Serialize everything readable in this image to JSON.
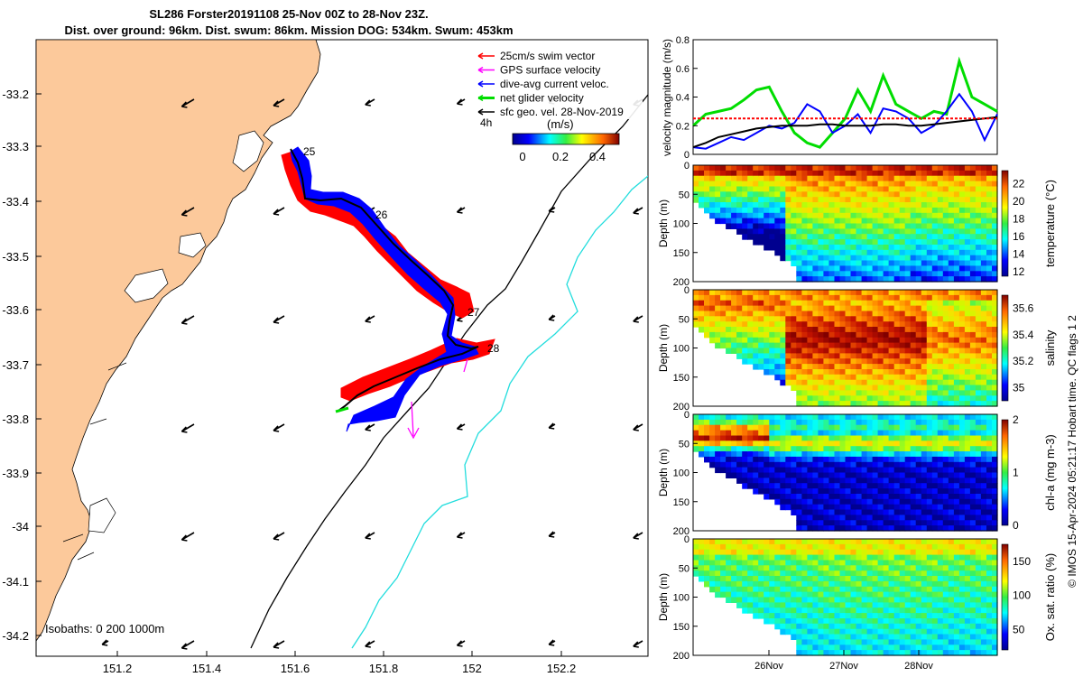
{
  "header": {
    "title_line1": "SL286 Forster20191108 25-Nov 00Z to 28-Nov 23Z.",
    "title_line2": "Dist. over ground: 96km. Dist. swum: 86km. Mission DOG: 534km. Swum: 453km"
  },
  "map": {
    "lat_ticks": [
      "-33.2",
      "-33.3",
      "-33.4",
      "-33.5",
      "-33.6",
      "-33.7",
      "-33.8",
      "-33.9",
      "-34",
      "-34.1",
      "-34.2"
    ],
    "lon_ticks": [
      "151.2",
      "151.4",
      "151.6",
      "151.8",
      "152",
      "152.2"
    ],
    "legend": [
      {
        "label": "25cm/s swim vector",
        "color": "#ff0000"
      },
      {
        "label": "GPS surface velocity",
        "color": "#ff00ff"
      },
      {
        "label": "dive-avg current veloc.",
        "color": "#0000ff"
      },
      {
        "label": "net glider velocity",
        "color": "#00dd00"
      },
      {
        "label": "sfc geo. vel. 28-Nov-2019",
        "color": "#000000"
      }
    ],
    "scale_label": "4h",
    "colorbar_unit": "(m/s)",
    "colorbar_ticks": [
      "0",
      "0.2",
      "0.4"
    ],
    "day_labels": [
      "25",
      "26",
      "27",
      "28"
    ],
    "isobaths_label": "Isobaths: 0   200  1000m",
    "colors": {
      "land": "#fcc99b",
      "isobath_200": "#000000",
      "isobath_1000": "#22dddd"
    }
  },
  "panels": {
    "velocity": {
      "ylabel": "velocity magnitude (m/s)",
      "yticks": [
        "0",
        "0.2",
        "0.4",
        "0.6",
        "0.8"
      ]
    },
    "temperature": {
      "ylabel": "Depth (m)",
      "cb_label": "temperature (°C)",
      "cb_ticks": [
        "12",
        "14",
        "16",
        "18",
        "20",
        "22"
      ]
    },
    "salinity": {
      "ylabel": "Depth (m)",
      "cb_label": "salinity",
      "cb_ticks": [
        "35",
        "35.2",
        "35.4",
        "35.6"
      ]
    },
    "chla": {
      "ylabel": "Depth (m)",
      "cb_label": "chl-a (mg m-3)",
      "cb_ticks": [
        "0",
        "1",
        "2"
      ]
    },
    "oxygen": {
      "ylabel": "Depth (m)",
      "cb_label": "Ox. sat. ratio (%)",
      "cb_ticks": [
        "50",
        "100",
        "150"
      ]
    },
    "depth_ticks": [
      "0",
      "50",
      "100",
      "150",
      "200"
    ],
    "date_ticks": [
      "26Nov",
      "27Nov",
      "28Nov"
    ]
  },
  "side_note": "© IMOS 15-Apr-2024 05:21:17 Hobart time. QC flags 1  2",
  "chart_data": [
    {
      "type": "line",
      "title": "",
      "ylabel": "velocity magnitude (m/s)",
      "xlabel": "",
      "ylim": [
        0,
        0.8
      ],
      "x_range": [
        "25-Nov 00Z",
        "28-Nov 23Z"
      ],
      "series": [
        {
          "color": "#00dd00",
          "values": [
            0.2,
            0.28,
            0.3,
            0.32,
            0.38,
            0.45,
            0.47,
            0.3,
            0.15,
            0.08,
            0.05,
            0.15,
            0.25,
            0.45,
            0.3,
            0.55,
            0.35,
            0.3,
            0.25,
            0.3,
            0.28,
            0.65,
            0.4,
            0.35,
            0.3
          ]
        },
        {
          "color": "#0000ff",
          "values": [
            0.05,
            0.04,
            0.08,
            0.12,
            0.1,
            0.15,
            0.2,
            0.18,
            0.22,
            0.35,
            0.3,
            0.15,
            0.2,
            0.28,
            0.15,
            0.32,
            0.3,
            0.25,
            0.15,
            0.2,
            0.3,
            0.42,
            0.3,
            0.1,
            0.28
          ]
        },
        {
          "color": "#000000",
          "values": [
            0.05,
            0.08,
            0.12,
            0.14,
            0.16,
            0.18,
            0.19,
            0.2,
            0.2,
            0.2,
            0.21,
            0.21,
            0.2,
            0.2,
            0.2,
            0.21,
            0.21,
            0.2,
            0.2,
            0.21,
            0.22,
            0.23,
            0.24,
            0.25,
            0.26
          ]
        },
        {
          "color": "#ff0000",
          "values": [
            0.25,
            0.25,
            0.25,
            0.25,
            0.25,
            0.25,
            0.25,
            0.25,
            0.25,
            0.25,
            0.25,
            0.25,
            0.25,
            0.25,
            0.25,
            0.25,
            0.25,
            0.25,
            0.25,
            0.25,
            0.25,
            0.25,
            0.25,
            0.25,
            0.25
          ]
        }
      ]
    },
    {
      "type": "heatmap",
      "title": "",
      "ylabel": "Depth (m)",
      "colorbar_label": "temperature (°C)",
      "clim": [
        11.5,
        23.5
      ],
      "ylim": [
        200,
        0
      ],
      "x_range": [
        "25-Nov 00Z",
        "28-Nov 23Z"
      ],
      "x_ticks": [
        "26Nov",
        "27Nov",
        "28Nov"
      ]
    },
    {
      "type": "heatmap",
      "title": "",
      "ylabel": "Depth (m)",
      "colorbar_label": "salinity",
      "clim": [
        34.9,
        35.7
      ],
      "ylim": [
        200,
        0
      ],
      "x_range": [
        "25-Nov 00Z",
        "28-Nov 23Z"
      ],
      "x_ticks": [
        "26Nov",
        "27Nov",
        "28Nov"
      ]
    },
    {
      "type": "heatmap",
      "title": "",
      "ylabel": "Depth (m)",
      "colorbar_label": "chl-a (mg m-3)",
      "clim": [
        0,
        2
      ],
      "ylim": [
        200,
        0
      ],
      "x_range": [
        "25-Nov 00Z",
        "28-Nov 23Z"
      ],
      "x_ticks": [
        "26Nov",
        "27Nov",
        "28Nov"
      ]
    },
    {
      "type": "heatmap",
      "title": "",
      "ylabel": "Depth (m)",
      "colorbar_label": "Ox. sat. ratio (%)",
      "clim": [
        20,
        175
      ],
      "ylim": [
        200,
        0
      ],
      "x_range": [
        "25-Nov 00Z",
        "28-Nov 23Z"
      ],
      "x_ticks": [
        "26Nov",
        "27Nov",
        "28Nov"
      ]
    }
  ]
}
